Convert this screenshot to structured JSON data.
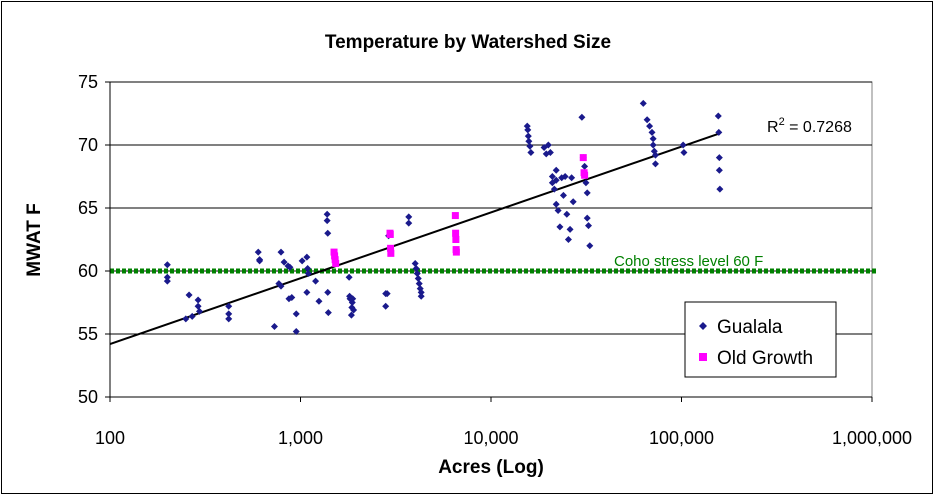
{
  "chart_data": {
    "type": "scatter",
    "title": "Temperature by Watershed Size",
    "xlabel": "Acres (Log)",
    "ylabel": "MWAT F",
    "x_scale": "log",
    "xlim": [
      100,
      1000000
    ],
    "ylim": [
      50,
      75
    ],
    "x_ticks": [
      100,
      1000,
      10000,
      100000,
      1000000
    ],
    "x_tick_labels": [
      "100",
      "1,000",
      "10,000",
      "100,000",
      "1,000,000"
    ],
    "y_ticks": [
      50,
      55,
      60,
      65,
      70,
      75
    ],
    "y_tick_labels": [
      "50",
      "55",
      "60",
      "65",
      "70",
      "75"
    ],
    "grid": "horizontal",
    "legend": {
      "placement": "bottom-right",
      "entries": [
        "Gualala",
        "Old Growth"
      ]
    },
    "colors": {
      "gualala": "#1a1a8c",
      "old_growth": "#ff00ff",
      "threshold": "#008000",
      "trend": "#000000"
    },
    "threshold": {
      "value": 60,
      "label": "Coho stress level 60 F"
    },
    "trendline": {
      "type": "log",
      "x": [
        100,
        157000
      ],
      "y": [
        54.2,
        70.9
      ],
      "label": "R² = 0.7268",
      "label_sup": "2",
      "r2_prefix": "R",
      "r2_suffix": " = 0.7268"
    },
    "series": [
      {
        "name": "Gualala",
        "marker": "diamond",
        "points": [
          [
            200,
            60.5
          ],
          [
            200,
            59.5
          ],
          [
            200,
            59.2
          ],
          [
            250,
            56.2
          ],
          [
            260,
            58.1
          ],
          [
            270,
            56.4
          ],
          [
            290,
            57.7
          ],
          [
            290,
            57.2
          ],
          [
            295,
            56.8
          ],
          [
            420,
            57.2
          ],
          [
            420,
            56.6
          ],
          [
            420,
            56.2
          ],
          [
            600,
            61.5
          ],
          [
            610,
            60.9
          ],
          [
            610,
            60.8
          ],
          [
            730,
            55.6
          ],
          [
            770,
            59.0
          ],
          [
            790,
            58.8
          ],
          [
            790,
            61.5
          ],
          [
            820,
            60.7
          ],
          [
            860,
            60.4
          ],
          [
            870,
            57.8
          ],
          [
            880,
            60.3
          ],
          [
            900,
            57.9
          ],
          [
            950,
            55.2
          ],
          [
            950,
            56.6
          ],
          [
            1020,
            60.8
          ],
          [
            1080,
            58.3
          ],
          [
            1080,
            61.1
          ],
          [
            1090,
            60.2
          ],
          [
            1100,
            59.8
          ],
          [
            1200,
            59.2
          ],
          [
            1250,
            57.6
          ],
          [
            1380,
            64.5
          ],
          [
            1380,
            64.0
          ],
          [
            1390,
            63.0
          ],
          [
            1390,
            58.3
          ],
          [
            1400,
            56.7
          ],
          [
            1800,
            59.5
          ],
          [
            1810,
            58.0
          ],
          [
            1820,
            57.8
          ],
          [
            1850,
            56.5
          ],
          [
            1860,
            57.1
          ],
          [
            1870,
            57.5
          ],
          [
            1880,
            57.8
          ],
          [
            1900,
            56.9
          ],
          [
            2800,
            58.2
          ],
          [
            2800,
            57.2
          ],
          [
            2850,
            58.2
          ],
          [
            2900,
            62.8
          ],
          [
            3700,
            64.3
          ],
          [
            3700,
            63.8
          ],
          [
            4000,
            60.6
          ],
          [
            4050,
            60.2
          ],
          [
            4100,
            59.8
          ],
          [
            4150,
            59.4
          ],
          [
            4200,
            59.0
          ],
          [
            4250,
            58.6
          ],
          [
            4300,
            58.3
          ],
          [
            4300,
            58.0
          ],
          [
            15500,
            71.5
          ],
          [
            15600,
            71.2
          ],
          [
            15700,
            70.7
          ],
          [
            15800,
            70.3
          ],
          [
            16000,
            69.9
          ],
          [
            16200,
            69.4
          ],
          [
            19000,
            69.8
          ],
          [
            19500,
            69.3
          ],
          [
            20000,
            70.0
          ],
          [
            20500,
            69.4
          ],
          [
            21000,
            67.5
          ],
          [
            21000,
            67.0
          ],
          [
            21500,
            66.5
          ],
          [
            22000,
            68.0
          ],
          [
            22000,
            67.2
          ],
          [
            22000,
            65.3
          ],
          [
            22500,
            64.8
          ],
          [
            23000,
            63.5
          ],
          [
            23500,
            67.4
          ],
          [
            24000,
            66.0
          ],
          [
            24500,
            67.5
          ],
          [
            25000,
            64.5
          ],
          [
            25500,
            62.5
          ],
          [
            26000,
            63.3
          ],
          [
            26500,
            67.4
          ],
          [
            27000,
            65.5
          ],
          [
            30000,
            72.2
          ],
          [
            30500,
            69.0
          ],
          [
            31000,
            68.3
          ],
          [
            31500,
            67.0
          ],
          [
            32000,
            66.2
          ],
          [
            32000,
            64.2
          ],
          [
            32500,
            63.6
          ],
          [
            33000,
            62.0
          ],
          [
            63000,
            73.3
          ],
          [
            66000,
            72.0
          ],
          [
            68000,
            71.5
          ],
          [
            70000,
            71.0
          ],
          [
            71000,
            70.5
          ],
          [
            71000,
            70.0
          ],
          [
            72000,
            69.5
          ],
          [
            73000,
            69.2
          ],
          [
            73000,
            68.5
          ],
          [
            102000,
            70.0
          ],
          [
            103000,
            69.4
          ],
          [
            156000,
            72.3
          ],
          [
            157000,
            71.0
          ],
          [
            158000,
            69.0
          ],
          [
            158000,
            68.0
          ],
          [
            159000,
            66.5
          ]
        ]
      },
      {
        "name": "Old Growth",
        "marker": "square",
        "points": [
          [
            1500,
            61.5
          ],
          [
            1510,
            61.2
          ],
          [
            1520,
            60.9
          ],
          [
            1530,
            60.6
          ],
          [
            2950,
            63.0
          ],
          [
            2960,
            62.9
          ],
          [
            2970,
            61.8
          ],
          [
            2980,
            61.4
          ],
          [
            6500,
            64.4
          ],
          [
            6520,
            63.0
          ],
          [
            6540,
            62.5
          ],
          [
            6560,
            61.7
          ],
          [
            6580,
            61.5
          ],
          [
            30500,
            69.0
          ],
          [
            30800,
            67.8
          ],
          [
            31000,
            67.6
          ]
        ]
      }
    ]
  }
}
